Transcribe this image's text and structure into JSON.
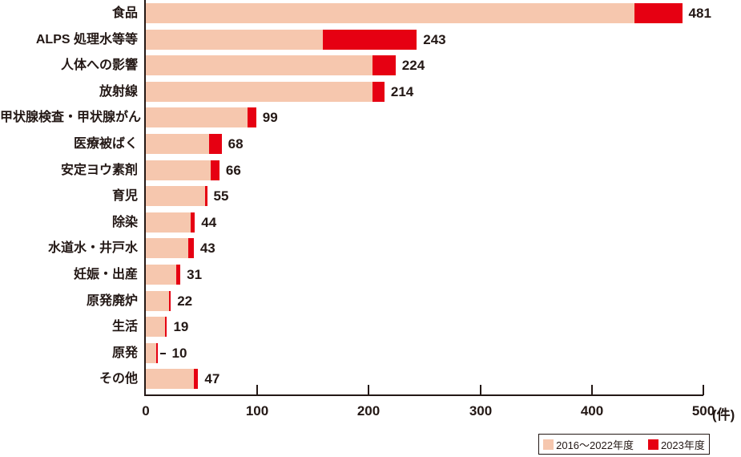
{
  "chart_data": {
    "type": "bar",
    "orientation": "horizontal",
    "title": "",
    "categories": [
      "食品",
      "ALPS 処理水等等",
      "人体への影響",
      "放射線",
      "甲状腺検査・甲状腺がん",
      "医療被ばく",
      "安定ヨウ素剤",
      "育児",
      "除染",
      "水道水・井戸水",
      "妊娠・出産",
      "原発廃炉",
      "生活",
      "原発",
      "その他"
    ],
    "series": [
      {
        "name": "2016〜2022年度",
        "color": "#f6c7ae",
        "values": [
          438,
          159,
          203,
          203,
          91,
          57,
          58,
          53,
          40,
          38,
          27,
          21,
          17,
          9,
          43
        ]
      },
      {
        "name": "2023年度",
        "color": "#e60012",
        "values": [
          43,
          84,
          21,
          11,
          8,
          11,
          8,
          2,
          4,
          5,
          4,
          1,
          2,
          1,
          4
        ]
      }
    ],
    "totals": [
      481,
      243,
      224,
      214,
      99,
      68,
      66,
      55,
      44,
      43,
      31,
      22,
      19,
      10,
      47
    ],
    "x_ticks": [
      0,
      100,
      200,
      300,
      400,
      500
    ],
    "xlim": [
      0,
      500
    ],
    "x_unit": "(件)",
    "annotations": [
      {
        "category": "原発",
        "type": "leader-dash"
      }
    ],
    "legend_position": "bottom-right",
    "grid": false,
    "axis_color": "#231815",
    "text_color": "#231815"
  }
}
